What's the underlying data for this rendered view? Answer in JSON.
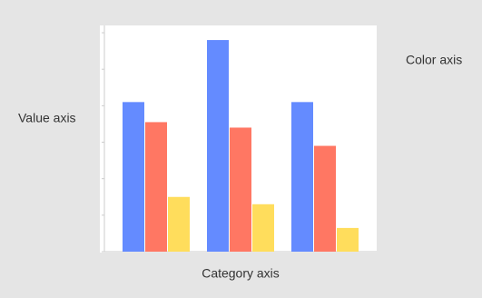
{
  "chart_data": {
    "type": "bar",
    "y_label": "Value axis",
    "x_label": "Category axis",
    "color_label": "Color axis",
    "categories": [
      null,
      null,
      null
    ],
    "series": [
      {
        "color": "#648bff",
        "values": [
          4.1,
          5.8,
          4.1
        ]
      },
      {
        "color": "#ff7763",
        "values": [
          3.55,
          3.4,
          2.9
        ]
      },
      {
        "color": "#ffdd5c",
        "values": [
          1.5,
          1.3,
          0.65
        ]
      }
    ],
    "ylim": [
      0,
      6.2
    ],
    "yticks": [
      0,
      1,
      2,
      3,
      4,
      5,
      6
    ]
  }
}
